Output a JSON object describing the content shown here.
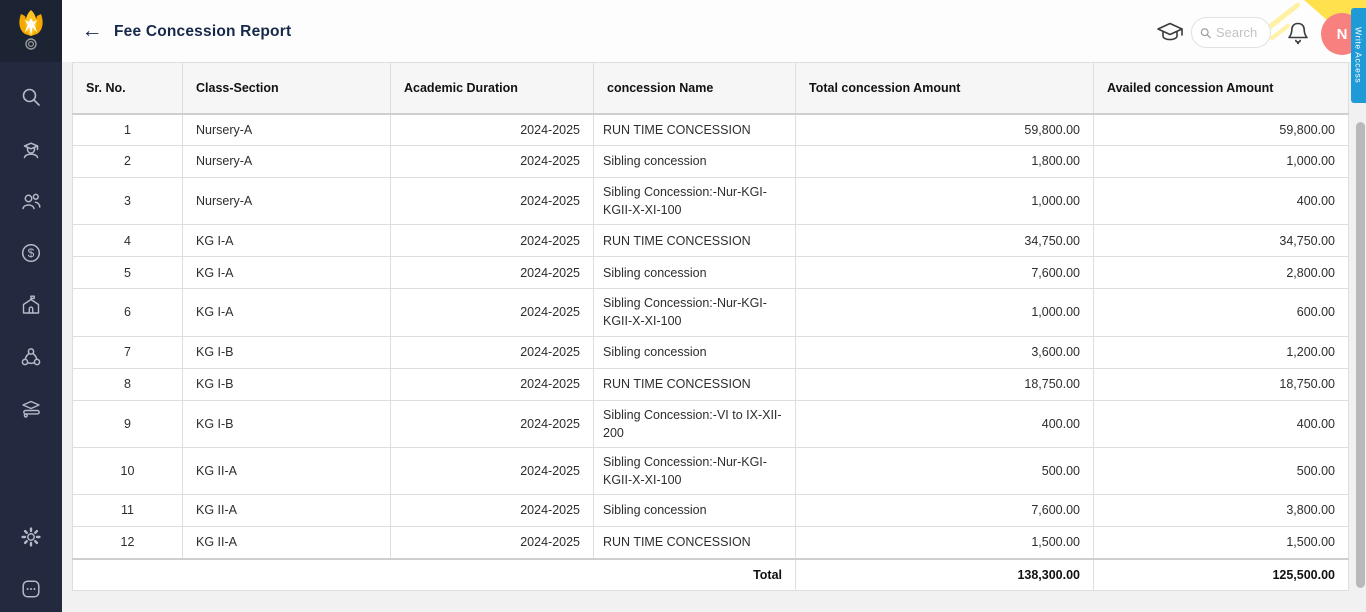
{
  "app": {
    "title": "Fee Concession Report",
    "back_arrow": "←"
  },
  "topbar": {
    "search_placeholder": "Search",
    "avatar_initial": "N",
    "write_access_label": "Write Access",
    "icons": [
      "graduation-cap",
      "bell"
    ]
  },
  "sidebar": {
    "icons": [
      "search",
      "student",
      "users",
      "fees",
      "school",
      "network",
      "courses",
      "settings",
      "more"
    ]
  },
  "table": {
    "columns": [
      "Sr. No.",
      "Class-Section",
      "Academic Duration",
      "concession Name",
      "Total concession Amount",
      "Availed concession Amount"
    ],
    "rows": [
      {
        "sr": "1",
        "class_section": "Nursery-A",
        "duration": "2024-2025",
        "concession": "RUN TIME CONCESSION",
        "total": "59,800.00",
        "availed": "59,800.00"
      },
      {
        "sr": "2",
        "class_section": "Nursery-A",
        "duration": "2024-2025",
        "concession": "Sibling concession",
        "total": "1,800.00",
        "availed": "1,000.00"
      },
      {
        "sr": "3",
        "class_section": "Nursery-A",
        "duration": "2024-2025",
        "concession": "Sibling Concession:-Nur-KGI-KGII-X-XI-100",
        "total": "1,000.00",
        "availed": "400.00"
      },
      {
        "sr": "4",
        "class_section": "KG I-A",
        "duration": "2024-2025",
        "concession": "RUN TIME CONCESSION",
        "total": "34,750.00",
        "availed": "34,750.00"
      },
      {
        "sr": "5",
        "class_section": "KG I-A",
        "duration": "2024-2025",
        "concession": "Sibling concession",
        "total": "7,600.00",
        "availed": "2,800.00"
      },
      {
        "sr": "6",
        "class_section": "KG I-A",
        "duration": "2024-2025",
        "concession": "Sibling Concession:-Nur-KGI-KGII-X-XI-100",
        "total": "1,000.00",
        "availed": "600.00"
      },
      {
        "sr": "7",
        "class_section": "KG I-B",
        "duration": "2024-2025",
        "concession": "Sibling concession",
        "total": "3,600.00",
        "availed": "1,200.00"
      },
      {
        "sr": "8",
        "class_section": "KG I-B",
        "duration": "2024-2025",
        "concession": "RUN TIME CONCESSION",
        "total": "18,750.00",
        "availed": "18,750.00"
      },
      {
        "sr": "9",
        "class_section": "KG I-B",
        "duration": "2024-2025",
        "concession": "Sibling Concession:-VI to IX-XII-200",
        "total": "400.00",
        "availed": "400.00"
      },
      {
        "sr": "10",
        "class_section": "KG II-A",
        "duration": "2024-2025",
        "concession": "Sibling Concession:-Nur-KGI-KGII-X-XI-100",
        "total": "500.00",
        "availed": "500.00"
      },
      {
        "sr": "11",
        "class_section": "KG II-A",
        "duration": "2024-2025",
        "concession": "Sibling concession",
        "total": "7,600.00",
        "availed": "3,800.00"
      },
      {
        "sr": "12",
        "class_section": "KG II-A",
        "duration": "2024-2025",
        "concession": "RUN TIME CONCESSION",
        "total": "1,500.00",
        "availed": "1,500.00"
      }
    ],
    "total": {
      "label": "Total",
      "total_amount": "138,300.00",
      "availed_amount": "125,500.00"
    }
  },
  "colors": {
    "sidebar-bg": "#232A40",
    "accent-blue": "#1E9AD6",
    "avatar-pink": "#F8807E",
    "logo-yellow": "#FFC421",
    "decor-yellow": "#FFE14D",
    "title-navy": "#16294B"
  }
}
